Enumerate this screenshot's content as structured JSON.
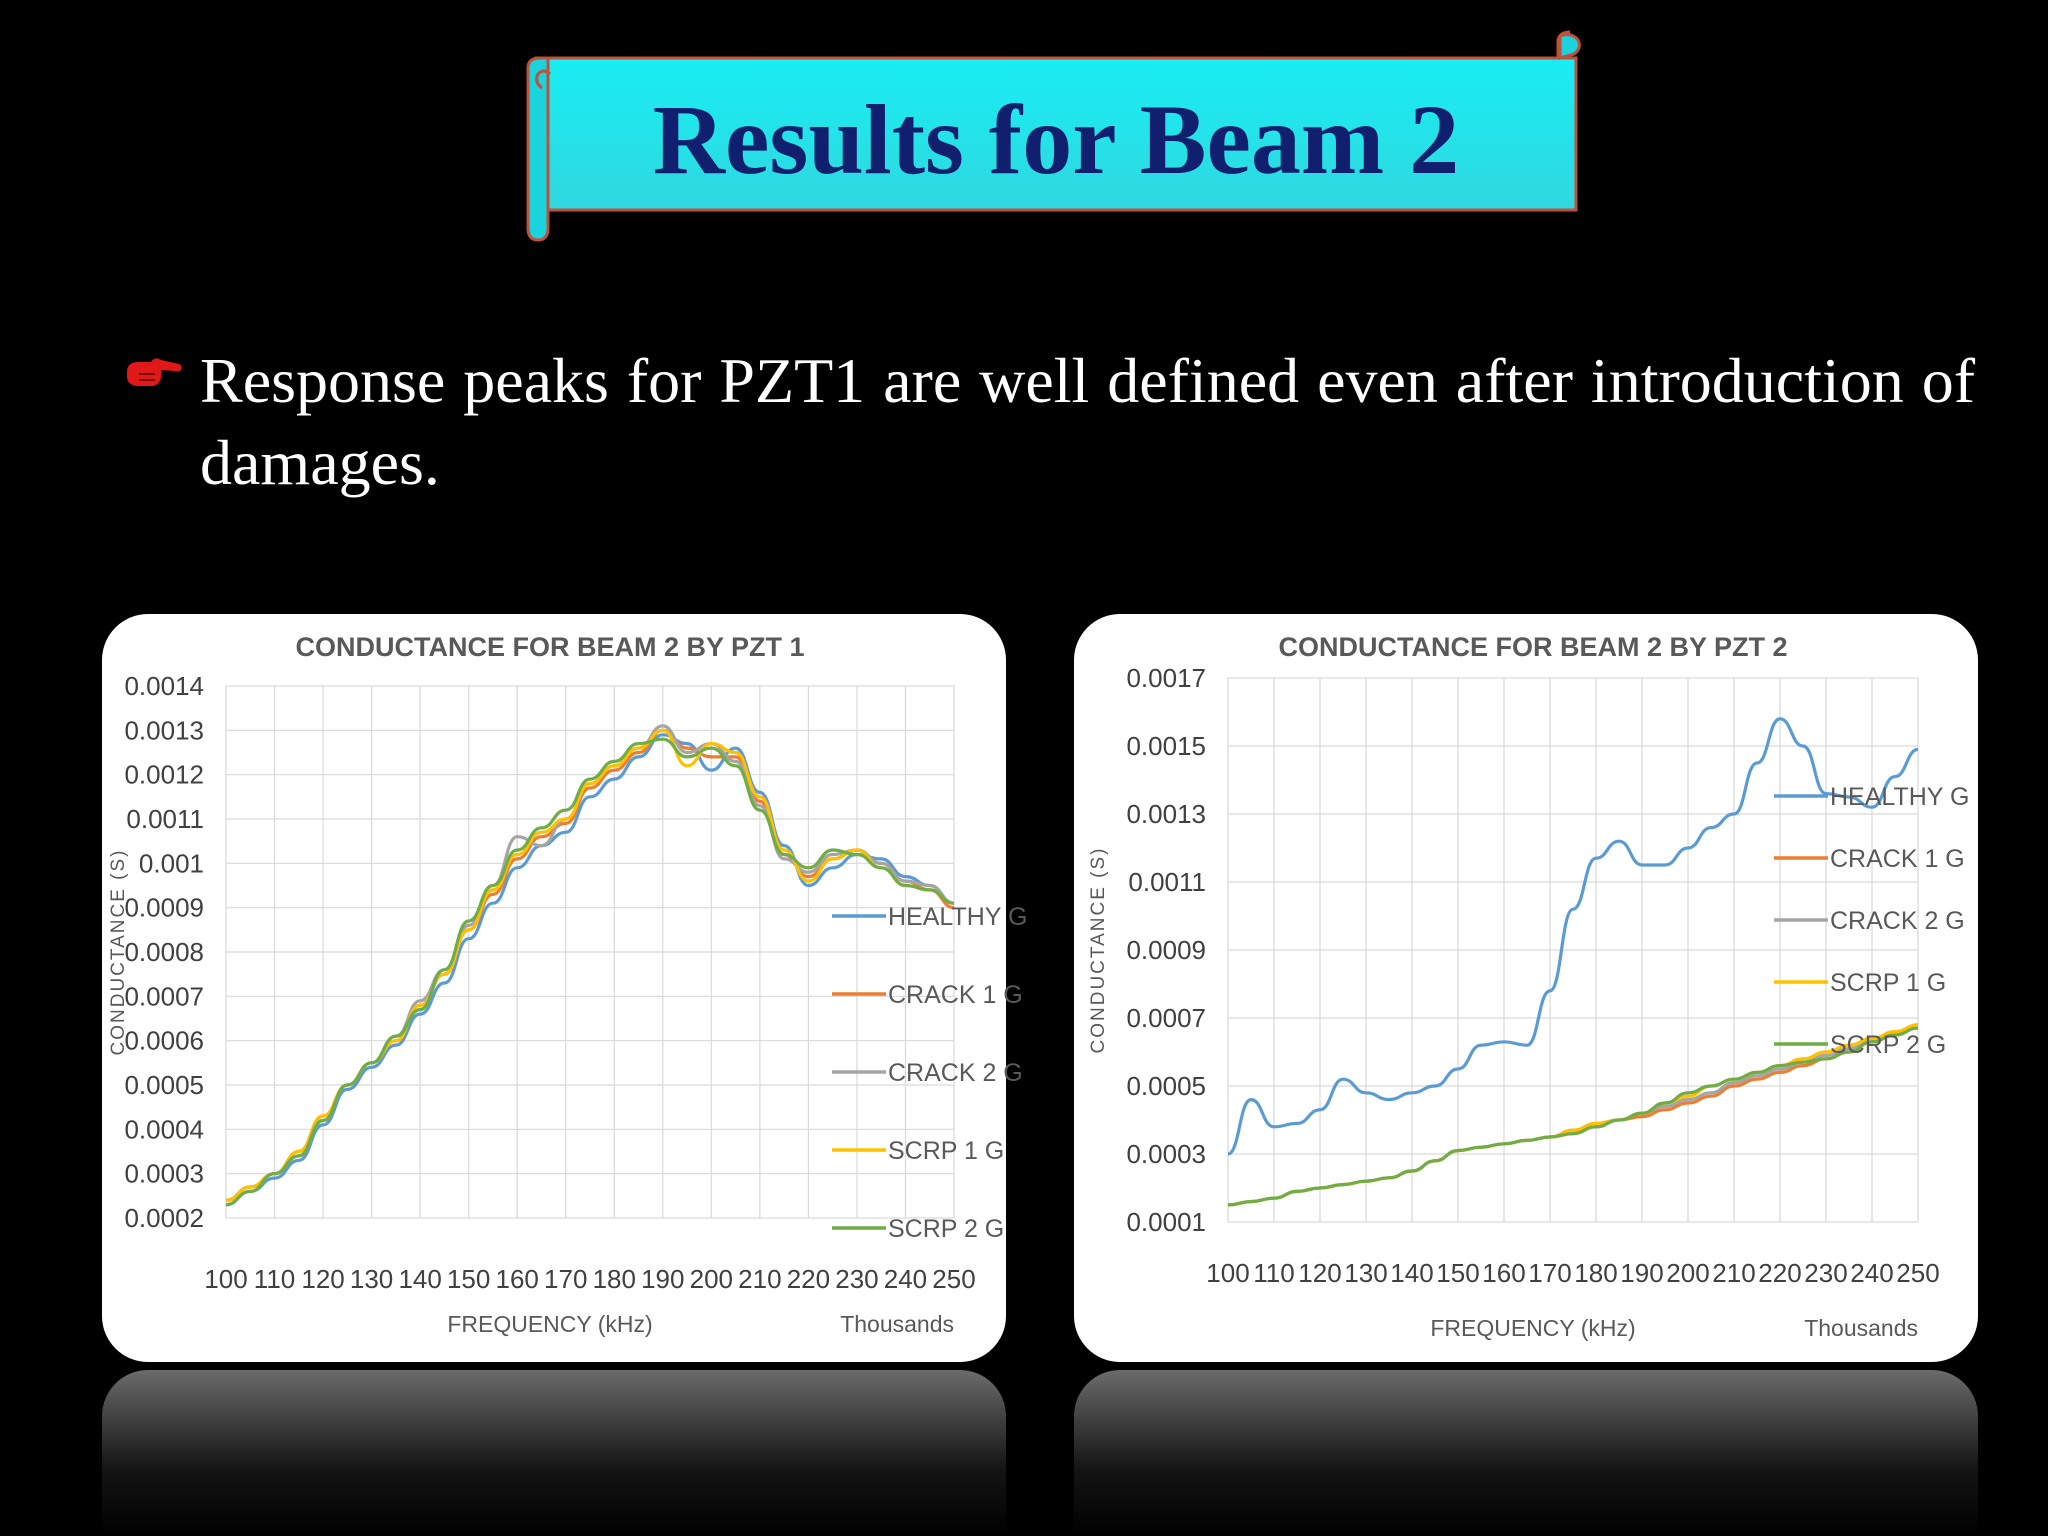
{
  "slide": {
    "title": "Results for Beam 2",
    "bullet": "Response peaks for PZT1 are well defined even after introduction of damages."
  },
  "colors": {
    "banner_fill": "#1ee8ee",
    "banner_border": "#c0503a",
    "title_text": "#10206e",
    "bullet_icon": "#e01818",
    "HEALTHY G": "#5b9bd5",
    "CRACK 1 G": "#ed7d31",
    "CRACK 2 G": "#a5a5a5",
    "SCRP 1 G": "#ffc000",
    "SCRP 2 G": "#70ad47"
  },
  "icons": {
    "bullet": "pointing-hand-icon"
  },
  "chart_data": [
    {
      "type": "line",
      "title": "CONDUCTANCE FOR BEAM 2 BY PZT 1",
      "xlabel": "FREQUENCY (kHz)",
      "x_unit_note": "Thousands",
      "ylabel": "CONDUCTANCE (S)",
      "xlim": [
        100,
        250
      ],
      "ylim": [
        0.0002,
        0.0014
      ],
      "xticks": [
        "100",
        "110",
        "120",
        "130",
        "140",
        "150",
        "160",
        "170",
        "180",
        "190",
        "200",
        "210",
        "220",
        "230",
        "240",
        "250"
      ],
      "yticks": [
        "0.0014",
        "0.0013",
        "0.0012",
        "0.0011",
        "0.001",
        "0.0009",
        "0.0008",
        "0.0007",
        "0.0006",
        "0.0005",
        "0.0004",
        "0.0003",
        "0.0002"
      ],
      "grid": true,
      "legend": "right",
      "x": [
        100,
        105,
        110,
        115,
        120,
        125,
        130,
        135,
        140,
        145,
        150,
        155,
        160,
        165,
        170,
        175,
        180,
        185,
        190,
        195,
        200,
        205,
        210,
        215,
        220,
        225,
        230,
        235,
        240,
        245,
        250
      ],
      "series": [
        {
          "name": "HEALTHY G",
          "values": [
            0.00023,
            0.00026,
            0.00029,
            0.00033,
            0.00041,
            0.00049,
            0.00054,
            0.00059,
            0.00066,
            0.00073,
            0.00083,
            0.00091,
            0.00099,
            0.00104,
            0.00107,
            0.00115,
            0.00119,
            0.00124,
            0.00129,
            0.00127,
            0.00121,
            0.00126,
            0.00116,
            0.00104,
            0.00095,
            0.00099,
            0.00102,
            0.00101,
            0.00097,
            0.00095,
            0.00091
          ]
        },
        {
          "name": "CRACK 1 G",
          "values": [
            0.00024,
            0.00027,
            0.0003,
            0.00035,
            0.00043,
            0.0005,
            0.00055,
            0.0006,
            0.00068,
            0.00075,
            0.00085,
            0.00093,
            0.00101,
            0.00106,
            0.00109,
            0.00117,
            0.00121,
            0.00125,
            0.0013,
            0.00126,
            0.00124,
            0.00124,
            0.00114,
            0.00102,
            0.00097,
            0.00101,
            0.00103,
            0.001,
            0.00096,
            0.00094,
            0.0009
          ]
        },
        {
          "name": "CRACK 2 G",
          "values": [
            0.00024,
            0.00027,
            0.0003,
            0.00034,
            0.00042,
            0.0005,
            0.00055,
            0.00061,
            0.00069,
            0.00076,
            0.00086,
            0.00095,
            0.00106,
            0.00104,
            0.0011,
            0.00118,
            0.00122,
            0.00126,
            0.00131,
            0.00125,
            0.00127,
            0.00123,
            0.00113,
            0.00101,
            0.00098,
            0.00102,
            0.00103,
            0.001,
            0.00096,
            0.00095,
            0.00091
          ]
        },
        {
          "name": "SCRP 1 G",
          "values": [
            0.00024,
            0.00027,
            0.0003,
            0.00035,
            0.00043,
            0.0005,
            0.00055,
            0.0006,
            0.00068,
            0.00075,
            0.00085,
            0.00094,
            0.00102,
            0.00107,
            0.0011,
            0.00118,
            0.00122,
            0.00126,
            0.0013,
            0.00122,
            0.00127,
            0.00125,
            0.00115,
            0.00103,
            0.00096,
            0.00101,
            0.00103,
            0.00099,
            0.00095,
            0.00094,
            0.00091
          ]
        },
        {
          "name": "SCRP 2 G",
          "values": [
            0.00023,
            0.00026,
            0.0003,
            0.00034,
            0.00042,
            0.0005,
            0.00055,
            0.00061,
            0.00067,
            0.00076,
            0.00087,
            0.00095,
            0.00103,
            0.00108,
            0.00112,
            0.00119,
            0.00123,
            0.00127,
            0.00128,
            0.00124,
            0.00126,
            0.00122,
            0.00112,
            0.00102,
            0.00099,
            0.00103,
            0.00102,
            0.00099,
            0.00095,
            0.00094,
            0.00091
          ]
        }
      ]
    },
    {
      "type": "line",
      "title": "CONDUCTANCE FOR BEAM 2 BY PZT 2",
      "xlabel": "FREQUENCY (kHz)",
      "x_unit_note": "Thousands",
      "ylabel": "CONDUCTANCE (S)",
      "xlim": [
        100,
        250
      ],
      "ylim": [
        0.0001,
        0.0017
      ],
      "xticks": [
        "100",
        "110",
        "120",
        "130",
        "140",
        "150",
        "160",
        "170",
        "180",
        "190",
        "200",
        "210",
        "220",
        "230",
        "240",
        "250"
      ],
      "yticks": [
        "0.0017",
        "0.0015",
        "0.0013",
        "0.0011",
        "0.0009",
        "0.0007",
        "0.0005",
        "0.0003",
        "0.0001"
      ],
      "grid": true,
      "legend": "right",
      "x": [
        100,
        105,
        110,
        115,
        120,
        125,
        130,
        135,
        140,
        145,
        150,
        155,
        160,
        165,
        170,
        175,
        180,
        185,
        190,
        195,
        200,
        205,
        210,
        215,
        220,
        225,
        230,
        235,
        240,
        245,
        250
      ],
      "series": [
        {
          "name": "HEALTHY G",
          "values": [
            0.0003,
            0.00046,
            0.00038,
            0.00039,
            0.00043,
            0.00052,
            0.00048,
            0.00046,
            0.00048,
            0.0005,
            0.00055,
            0.00062,
            0.00063,
            0.00062,
            0.00078,
            0.00102,
            0.00117,
            0.00122,
            0.00115,
            0.00115,
            0.0012,
            0.00126,
            0.0013,
            0.00145,
            0.00158,
            0.0015,
            0.00136,
            0.00135,
            0.00132,
            0.00141,
            0.00149
          ]
        },
        {
          "name": "CRACK 1 G",
          "values": [
            0.00015,
            0.00016,
            0.00017,
            0.00019,
            0.0002,
            0.00021,
            0.00022,
            0.00023,
            0.00025,
            0.00028,
            0.00031,
            0.00032,
            0.00033,
            0.00034,
            0.00035,
            0.00036,
            0.00038,
            0.0004,
            0.00041,
            0.00043,
            0.00045,
            0.00047,
            0.0005,
            0.00052,
            0.00054,
            0.00056,
            0.00058,
            0.0006,
            0.00063,
            0.00065,
            0.00068
          ]
        },
        {
          "name": "CRACK 2 G",
          "values": [
            0.00015,
            0.00016,
            0.00017,
            0.00019,
            0.0002,
            0.00021,
            0.00022,
            0.00023,
            0.00025,
            0.00028,
            0.00031,
            0.00032,
            0.00033,
            0.00034,
            0.00035,
            0.00037,
            0.00038,
            0.0004,
            0.00042,
            0.00044,
            0.00046,
            0.00048,
            0.00051,
            0.00053,
            0.00055,
            0.00057,
            0.00059,
            0.00061,
            0.00063,
            0.00065,
            0.00068
          ]
        },
        {
          "name": "SCRP 1 G",
          "values": [
            0.00015,
            0.00016,
            0.00017,
            0.00019,
            0.0002,
            0.00021,
            0.00022,
            0.00023,
            0.00025,
            0.00028,
            0.00031,
            0.00032,
            0.00033,
            0.00034,
            0.00035,
            0.00037,
            0.00039,
            0.0004,
            0.00042,
            0.00045,
            0.00047,
            0.0005,
            0.00052,
            0.00054,
            0.00056,
            0.00058,
            0.0006,
            0.00062,
            0.00064,
            0.00066,
            0.00068
          ]
        },
        {
          "name": "SCRP 2 G",
          "values": [
            0.00015,
            0.00016,
            0.00017,
            0.00019,
            0.0002,
            0.00021,
            0.00022,
            0.00023,
            0.00025,
            0.00028,
            0.00031,
            0.00032,
            0.00033,
            0.00034,
            0.00035,
            0.00036,
            0.00038,
            0.0004,
            0.00042,
            0.00045,
            0.00048,
            0.0005,
            0.00052,
            0.00054,
            0.00056,
            0.00057,
            0.00058,
            0.0006,
            0.00063,
            0.00065,
            0.00067
          ]
        }
      ]
    }
  ]
}
